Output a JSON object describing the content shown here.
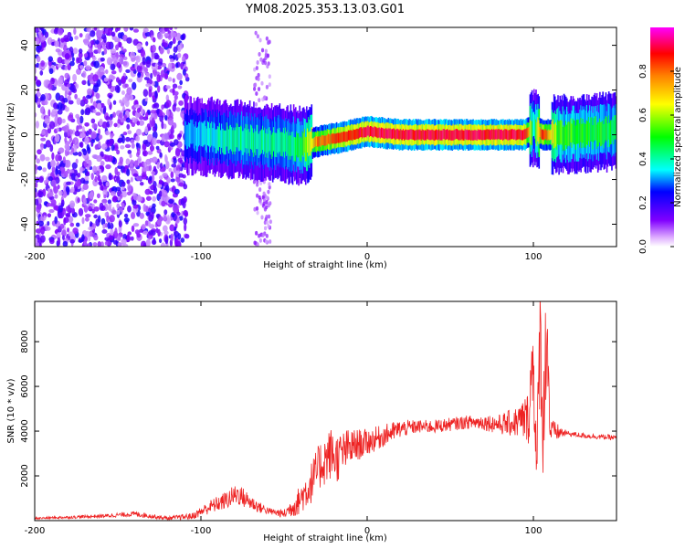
{
  "title": "YM08.2025.353.13.03.G01",
  "chart_data": [
    {
      "type": "heatmap",
      "name": "spectrogram",
      "xlabel": "Height of straight line (km)",
      "ylabel": "Frequency (Hz)",
      "xlim": [
        -200,
        150
      ],
      "ylim": [
        -50,
        48
      ],
      "x_ticks": [
        -200,
        -100,
        0,
        100
      ],
      "x_tick_labels": [
        "-200",
        "-100",
        "0",
        "100"
      ],
      "y_ticks": [
        -40,
        -20,
        0,
        20,
        40
      ],
      "y_tick_labels": [
        "-40",
        "-20",
        "0",
        "20",
        "40"
      ],
      "colorbar": {
        "label": "Normalized spectral amplitude",
        "range": [
          0,
          1
        ],
        "ticks": [
          0.0,
          0.2,
          0.4,
          0.6,
          0.8
        ],
        "tick_labels": [
          "0.0",
          "0.2",
          "0.4",
          "0.6",
          "0.8"
        ],
        "colors": [
          "#ffffff",
          "#8000ff",
          "#0000ff",
          "#00ffff",
          "#00ff00",
          "#ffff00",
          "#ff8000",
          "#ff0000",
          "#ff00ff"
        ]
      },
      "features": {
        "noise_region_x": [
          -200,
          -108
        ],
        "noise_strip_x": [
          -68,
          -58
        ],
        "signal_trend": [
          {
            "x": -110,
            "freq": 0,
            "amp": 0.35
          },
          {
            "x": -80,
            "freq": -2,
            "amp": 0.45
          },
          {
            "x": -50,
            "freq": -4,
            "amp": 0.45
          },
          {
            "x": -40,
            "freq": -5,
            "amp": 0.5
          },
          {
            "x": -30,
            "freq": -3,
            "amp": 0.8
          },
          {
            "x": -15,
            "freq": -1,
            "amp": 0.9
          },
          {
            "x": 0,
            "freq": 1.5,
            "amp": 0.95
          },
          {
            "x": 20,
            "freq": 0,
            "amp": 0.95
          },
          {
            "x": 95,
            "freq": 0,
            "amp": 0.95
          },
          {
            "x": 100,
            "freq": 3,
            "amp": 0.4
          },
          {
            "x": 105,
            "freq": 0,
            "amp": 0.9
          },
          {
            "x": 115,
            "freq": 0,
            "amp": 0.55
          },
          {
            "x": 150,
            "freq": 1.5,
            "amp": 0.5
          }
        ]
      }
    },
    {
      "type": "line",
      "name": "snr",
      "xlabel": "Height of straight line (km)",
      "ylabel": "SNR (10 * v/v)",
      "xlim": [
        -200,
        150
      ],
      "ylim": [
        0,
        9800
      ],
      "x_ticks": [
        -200,
        -100,
        0,
        100
      ],
      "x_tick_labels": [
        "-200",
        "-100",
        "0",
        "100"
      ],
      "y_ticks": [
        2000,
        4000,
        6000,
        8000
      ],
      "y_tick_labels": [
        "2000",
        "4000",
        "6000",
        "8000"
      ],
      "color": "#ee2222",
      "series": [
        {
          "name": "SNR",
          "x": [
            -200,
            -180,
            -160,
            -140,
            -120,
            -105,
            -95,
            -85,
            -78,
            -72,
            -65,
            -58,
            -50,
            -42,
            -35,
            -28,
            -22,
            -18,
            -12,
            -5,
            0,
            10,
            20,
            30,
            40,
            50,
            60,
            70,
            80,
            90,
            97,
            100,
            102,
            104,
            106,
            108,
            110,
            120,
            130,
            140,
            150
          ],
          "y": [
            100,
            150,
            200,
            300,
            100,
            200,
            600,
            900,
            1200,
            900,
            600,
            400,
            300,
            800,
            1500,
            2500,
            3000,
            2800,
            3200,
            3400,
            3500,
            3800,
            4100,
            4200,
            4200,
            4300,
            4400,
            4400,
            4300,
            4400,
            4600,
            7500,
            2000,
            8500,
            4000,
            9300,
            4000,
            3900,
            3800,
            3750,
            3700
          ],
          "jitter": [
            50,
            60,
            80,
            120,
            80,
            150,
            300,
            400,
            500,
            400,
            250,
            150,
            200,
            600,
            900,
            1100,
            1200,
            1100,
            900,
            700,
            600,
            500,
            400,
            300,
            300,
            300,
            300,
            350,
            450,
            700,
            1200,
            2500,
            1500,
            3000,
            2500,
            3000,
            600,
            120,
            120,
            120,
            120
          ]
        }
      ]
    }
  ]
}
